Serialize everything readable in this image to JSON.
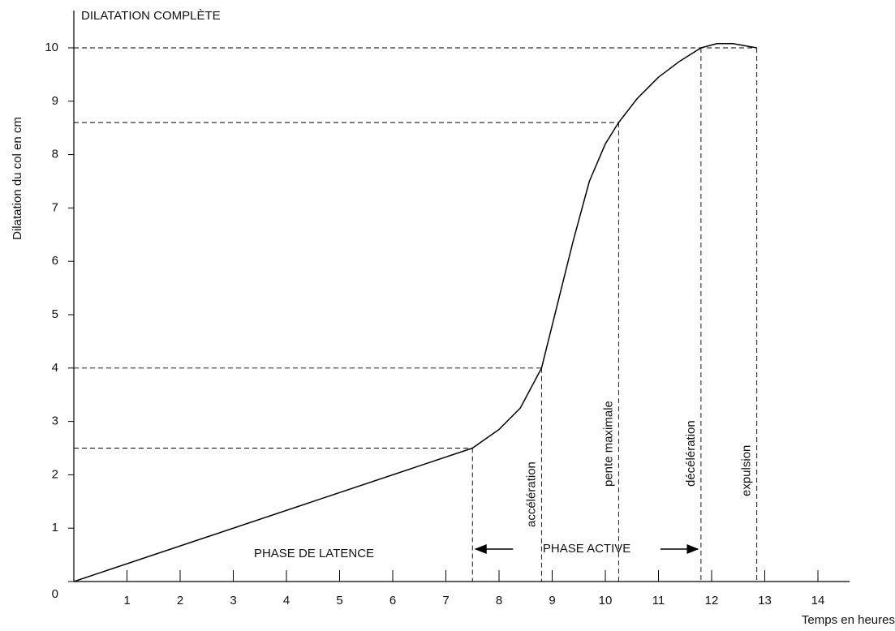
{
  "chart_data": {
    "type": "line",
    "title": "DILATATION COMPLÈTE",
    "x_label": "Temps en heures",
    "y_label": "Dilatation du col en cm",
    "x": [
      0,
      7.5,
      8,
      8.4,
      8.8,
      9.1,
      9.4,
      9.7,
      10,
      10.25,
      10.6,
      11,
      11.4,
      11.8,
      12.1,
      12.4,
      12.85
    ],
    "series": [
      {
        "name": "Dilatation",
        "color": "#000000",
        "values": [
          0,
          2.5,
          2.85,
          3.25,
          4,
          5.2,
          6.4,
          7.5,
          8.2,
          8.6,
          9.05,
          9.45,
          9.75,
          10,
          10.08,
          10.08,
          10
        ]
      }
    ],
    "reference_points": [
      {
        "x": 7.5,
        "y": 2.5
      },
      {
        "x": 8.8,
        "y": 4
      },
      {
        "x": 10.25,
        "y": 8.6
      },
      {
        "x": 11.8,
        "y": 10
      },
      {
        "x": 12.85,
        "y": 10
      }
    ],
    "annotations": [
      "PHASE DE LATENCE",
      "PHASE ACTIVE",
      "accélération",
      "pente maximale",
      "décélération",
      "expulsion"
    ],
    "xlim": [
      0,
      14.6
    ],
    "ylim": [
      0,
      10.7
    ],
    "xticks": [
      1,
      2,
      3,
      4,
      5,
      6,
      7,
      8,
      9,
      10,
      11,
      12,
      13,
      14
    ],
    "yticks": [
      0,
      1,
      2,
      3,
      4,
      5,
      6,
      7,
      8,
      9,
      10
    ],
    "grid": false
  }
}
